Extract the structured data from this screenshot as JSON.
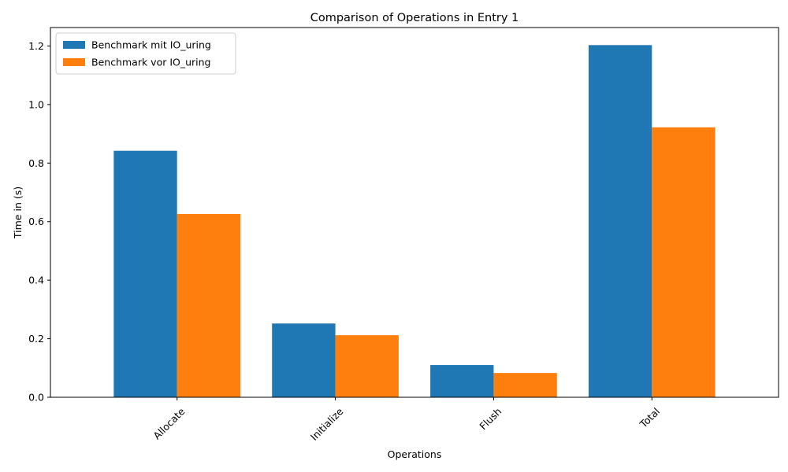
{
  "chart_data": {
    "type": "bar",
    "title": "Comparison of Operations in Entry 1",
    "xlabel": "Operations",
    "ylabel": "Time in (s)",
    "categories": [
      "Allocate",
      "Initialize",
      "Flush",
      "Total"
    ],
    "series": [
      {
        "name": "Benchmark mit IO_uring",
        "values": [
          0.842,
          0.252,
          0.11,
          1.203
        ],
        "color": "#1f77b4"
      },
      {
        "name": "Benchmark vor IO_uring",
        "values": [
          0.626,
          0.212,
          0.083,
          0.922
        ],
        "color": "#ff7f0e"
      }
    ],
    "ylim": [
      0,
      1.263
    ],
    "yticks": [
      "0.0",
      "0.2",
      "0.4",
      "0.6",
      "0.8",
      "1.0",
      "1.2"
    ],
    "legend_position": "top-left",
    "xtick_rotation": 45,
    "grid": false
  }
}
